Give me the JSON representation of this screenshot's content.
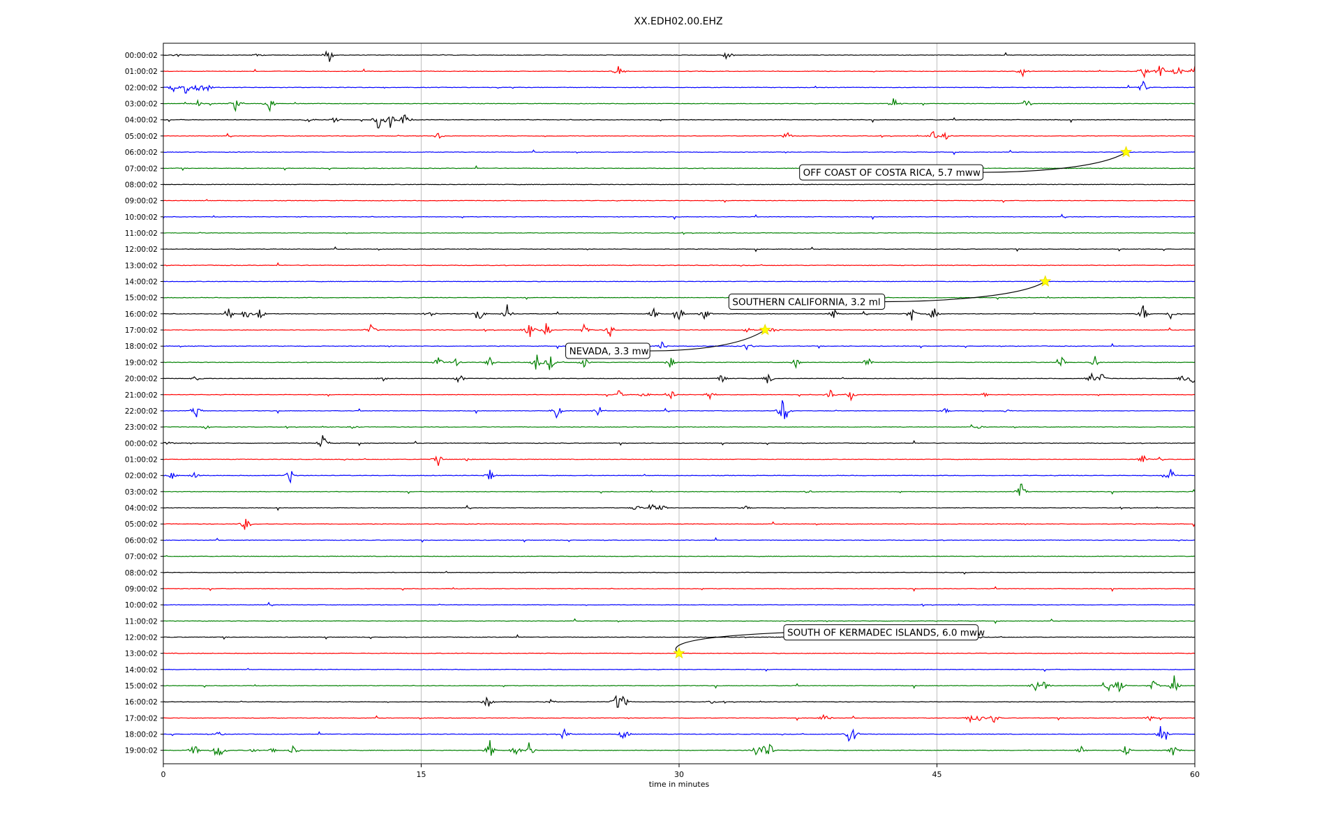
{
  "chart_data": {
    "type": "line",
    "title": "XX.EDH02.00.EHZ",
    "xlabel": "time in minutes",
    "ylabel": "",
    "xlim": [
      0,
      60
    ],
    "x_ticks": [
      "0",
      "15",
      "30",
      "45",
      "60"
    ],
    "x_tick_values": [
      0,
      15,
      30,
      45,
      60
    ],
    "grid": "vertical",
    "color_cycle": [
      "#000000",
      "#ff0000",
      "#0000ff",
      "#008000"
    ],
    "row_labels": [
      "00:00:02",
      "01:00:02",
      "02:00:02",
      "03:00:02",
      "04:00:02",
      "05:00:02",
      "06:00:02",
      "07:00:02",
      "08:00:02",
      "09:00:02",
      "10:00:02",
      "11:00:02",
      "12:00:02",
      "13:00:02",
      "14:00:02",
      "15:00:02",
      "16:00:02",
      "17:00:02",
      "18:00:02",
      "19:00:02",
      "20:00:02",
      "21:00:02",
      "22:00:02",
      "23:00:02",
      "00:00:02",
      "01:00:02",
      "02:00:02",
      "03:00:02",
      "04:00:02",
      "05:00:02",
      "06:00:02",
      "07:00:02",
      "08:00:02",
      "09:00:02",
      "10:00:02",
      "11:00:02",
      "12:00:02",
      "13:00:02",
      "14:00:02",
      "15:00:02",
      "16:00:02",
      "17:00:02",
      "18:00:02",
      "19:00:02"
    ],
    "bursts": [
      [
        [
          9.6,
          1.0
        ],
        [
          32.8,
          0.7
        ],
        [
          0.8,
          0.2
        ],
        [
          5.5,
          0.2
        ]
      ],
      [
        [
          26.5,
          0.8
        ],
        [
          50,
          0.6
        ],
        [
          57,
          0.9
        ],
        [
          58,
          0.9
        ],
        [
          59,
          0.8
        ],
        [
          60,
          0.8
        ]
      ],
      [
        [
          0.6,
          0.8
        ],
        [
          1.3,
          0.9
        ],
        [
          2.1,
          1.0
        ],
        [
          2.6,
          0.4
        ],
        [
          57,
          0.8
        ]
      ],
      [
        [
          4.2,
          0.7
        ],
        [
          6.2,
          0.8
        ],
        [
          42.5,
          0.8
        ],
        [
          50.2,
          0.7
        ],
        [
          2,
          0.3
        ]
      ],
      [
        [
          8.5,
          0.4
        ],
        [
          10,
          0.5
        ],
        [
          12.5,
          1.0
        ],
        [
          13.2,
          1.0
        ],
        [
          14,
          0.8
        ]
      ],
      [
        [
          16,
          0.4
        ],
        [
          36.3,
          0.5
        ],
        [
          44.8,
          0.5
        ],
        [
          45.5,
          0.4
        ]
      ],
      [],
      [],
      [],
      [],
      [],
      [],
      [],
      [],
      [],
      [],
      [
        [
          3.8,
          1.0
        ],
        [
          4.8,
          0.8
        ],
        [
          5.6,
          0.6
        ],
        [
          15.5,
          0.5
        ],
        [
          18.4,
          0.8
        ],
        [
          20,
          0.9
        ],
        [
          28.5,
          0.6
        ],
        [
          30,
          0.9
        ],
        [
          31.5,
          0.7
        ],
        [
          39,
          0.6
        ],
        [
          43.5,
          0.8
        ],
        [
          44.8,
          0.8
        ],
        [
          57,
          1.0
        ],
        [
          58.6,
          0.6
        ]
      ],
      [
        [
          12.1,
          0.6
        ],
        [
          21.3,
          0.9
        ],
        [
          22.3,
          0.8
        ],
        [
          24.5,
          0.8
        ],
        [
          26,
          0.8
        ],
        [
          34,
          0.3
        ],
        [
          35.5,
          0.3
        ]
      ],
      [
        [
          29,
          0.7
        ],
        [
          34,
          0.5
        ]
      ],
      [
        [
          16,
          0.6
        ],
        [
          17,
          0.5
        ],
        [
          19,
          0.6
        ],
        [
          21.7,
          1.0
        ],
        [
          22.5,
          0.9
        ],
        [
          24.5,
          0.6
        ],
        [
          29.5,
          0.6
        ],
        [
          36.8,
          0.5
        ],
        [
          41,
          0.7
        ],
        [
          52.2,
          1.0
        ],
        [
          54.2,
          0.8
        ]
      ],
      [
        [
          1.9,
          0.3
        ],
        [
          12.8,
          0.4
        ],
        [
          17.2,
          0.8
        ],
        [
          32.5,
          0.6
        ],
        [
          35.2,
          0.7
        ],
        [
          54,
          0.6
        ],
        [
          54.6,
          0.6
        ],
        [
          59.3,
          0.5
        ],
        [
          59.9,
          0.9
        ]
      ],
      [
        [
          26.5,
          0.5
        ],
        [
          28,
          0.6
        ],
        [
          29.5,
          0.7
        ],
        [
          31.8,
          0.6
        ],
        [
          38.8,
          0.6
        ],
        [
          40,
          0.5
        ],
        [
          47.8,
          0.2
        ]
      ],
      [
        [
          1.9,
          0.8
        ],
        [
          22.9,
          0.9
        ],
        [
          25.3,
          0.7
        ],
        [
          36,
          1.0
        ],
        [
          36.2,
          0.9
        ],
        [
          45.5,
          0.3
        ],
        [
          49,
          0.2
        ]
      ],
      [
        [
          2.5,
          0.2
        ],
        [
          11.1,
          0.2
        ],
        [
          47.4,
          0.2
        ]
      ],
      [
        [
          9.3,
          1.0
        ],
        [
          0.3,
          0.2
        ]
      ],
      [
        [
          16,
          0.7
        ],
        [
          17.6,
          0.2
        ],
        [
          57,
          0.6
        ],
        [
          58,
          0.3
        ]
      ],
      [
        [
          0.5,
          0.4
        ],
        [
          1.8,
          0.6
        ],
        [
          7.4,
          0.8
        ],
        [
          19,
          0.6
        ],
        [
          58.6,
          0.9
        ]
      ],
      [
        [
          49.9,
          0.9
        ],
        [
          37.5,
          0.2
        ]
      ],
      [
        [
          27.5,
          0.4
        ],
        [
          28.4,
          0.6
        ],
        [
          29,
          0.4
        ],
        [
          33.9,
          0.2
        ]
      ],
      [
        [
          4.8,
          0.9
        ]
      ],
      [],
      [],
      [],
      [],
      [],
      [],
      [],
      [],
      [],
      [
        [
          50.7,
          0.8
        ],
        [
          51.3,
          0.7
        ],
        [
          55,
          0.6
        ],
        [
          55.6,
          0.8
        ],
        [
          57.6,
          0.6
        ],
        [
          58.8,
          1.0
        ]
      ],
      [
        [
          18.9,
          1.0
        ],
        [
          22.5,
          0.6
        ],
        [
          26.4,
          1.0
        ],
        [
          26.8,
          0.7
        ],
        [
          31.9,
          0.2
        ]
      ],
      [
        [
          38.5,
          0.6
        ],
        [
          46.9,
          0.5
        ],
        [
          47.5,
          0.4
        ],
        [
          48.3,
          0.6
        ],
        [
          57.4,
          0.3
        ]
      ],
      [
        [
          3.2,
          0.3
        ],
        [
          23.3,
          0.9
        ],
        [
          26.8,
          0.9
        ],
        [
          39.9,
          0.7
        ],
        [
          40.2,
          0.8
        ],
        [
          58,
          0.7
        ],
        [
          58.3,
          0.6
        ]
      ],
      [
        [
          1.8,
          0.8
        ],
        [
          3.1,
          0.8
        ],
        [
          3.4,
          0.6
        ],
        [
          5.2,
          0.3
        ],
        [
          6.4,
          0.4
        ],
        [
          7.6,
          0.7
        ],
        [
          19,
          1.0
        ],
        [
          20.5,
          0.8
        ],
        [
          21.3,
          1.0
        ],
        [
          34.5,
          0.8
        ],
        [
          35,
          0.9
        ],
        [
          35.3,
          0.6
        ],
        [
          53.4,
          0.4
        ],
        [
          56,
          0.7
        ],
        [
          58.8,
          0.8
        ]
      ]
    ],
    "events": [
      {
        "label": "OFF COAST OF COSTA RICA, 5.7 mww",
        "row": 6,
        "minute": 56
      },
      {
        "label": "SOUTHERN CALIFORNIA, 3.2 ml",
        "row": 14,
        "minute": 51.3
      },
      {
        "label": "NEVADA, 3.3 mw",
        "row": 17,
        "minute": 35
      },
      {
        "label": "SOUTH OF KERMADEC ISLANDS, 6.0 mww",
        "row": 37,
        "minute": 30
      }
    ]
  }
}
